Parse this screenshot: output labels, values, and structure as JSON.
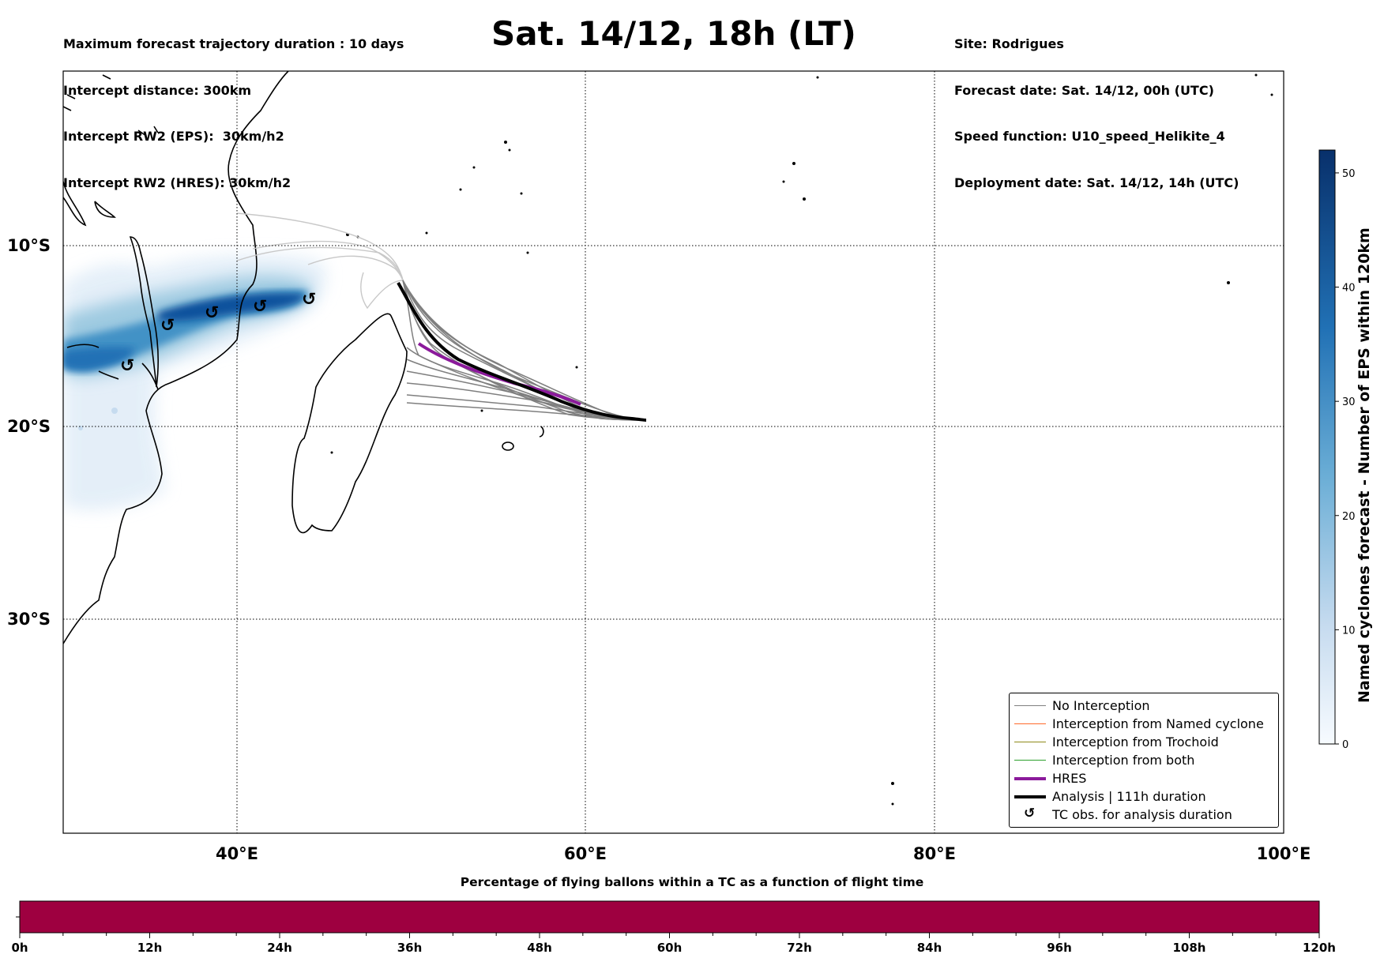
{
  "header_left": [
    "Maximum forecast trajectory duration : 10 days",
    "Intercept distance: 300km",
    "Intercept RW2 (EPS):  30km/h2",
    "Intercept RW2 (HRES): 30km/h2"
  ],
  "title": "Sat. 14/12, 18h (LT)",
  "header_right": [
    "Site: Rodrigues",
    "Forecast date: Sat. 14/12, 00h (UTC)",
    "Speed function: U10_speed_Helikite_4",
    "Deployment date: Sat. 14/12, 14h (UTC)"
  ],
  "map": {
    "lon_ticks": [
      "40°E",
      "60°E",
      "80°E",
      "100°E"
    ],
    "lat_ticks": [
      "10°S",
      "20°S",
      "30°S"
    ],
    "lon_range": [
      30,
      100
    ],
    "lat_range": [
      -43.5,
      0
    ],
    "grid": "dotted"
  },
  "legend": {
    "placement": "lower-right",
    "items": [
      {
        "label": "No Interception",
        "color": "#808080",
        "style": "thin"
      },
      {
        "label": "Interception from Named cyclone",
        "color": "#ff6a2b",
        "style": "thin"
      },
      {
        "label": "Interception from Trochoid",
        "color": "#8f8a1a",
        "style": "thin"
      },
      {
        "label": "Interception from both",
        "color": "#2ca02c",
        "style": "thin"
      },
      {
        "label": "HRES",
        "color": "#8b1a9b",
        "style": "thick"
      },
      {
        "label": "Analysis | 111h duration",
        "color": "#000000",
        "style": "thick"
      },
      {
        "label": "TC obs. for analysis duration",
        "color": "#000000",
        "style": "symbol"
      }
    ]
  },
  "colorbar": {
    "label": "Named cyclones forecast - Number of EPS within 120km",
    "ticks": [
      "0",
      "10",
      "20",
      "30",
      "40",
      "50"
    ],
    "range": [
      0,
      52
    ],
    "colormap": "Blues"
  },
  "bottom_bar": {
    "title": "Percentage of flying ballons within a TC as a function of flight time",
    "ticks": [
      "0h",
      "12h",
      "24h",
      "36h",
      "48h",
      "60h",
      "72h",
      "84h",
      "96h",
      "108h",
      "120h"
    ],
    "fill_color": "#9e0040",
    "percent_values": [
      0,
      0,
      0,
      0,
      0,
      0,
      0,
      0,
      0,
      0,
      0
    ]
  }
}
